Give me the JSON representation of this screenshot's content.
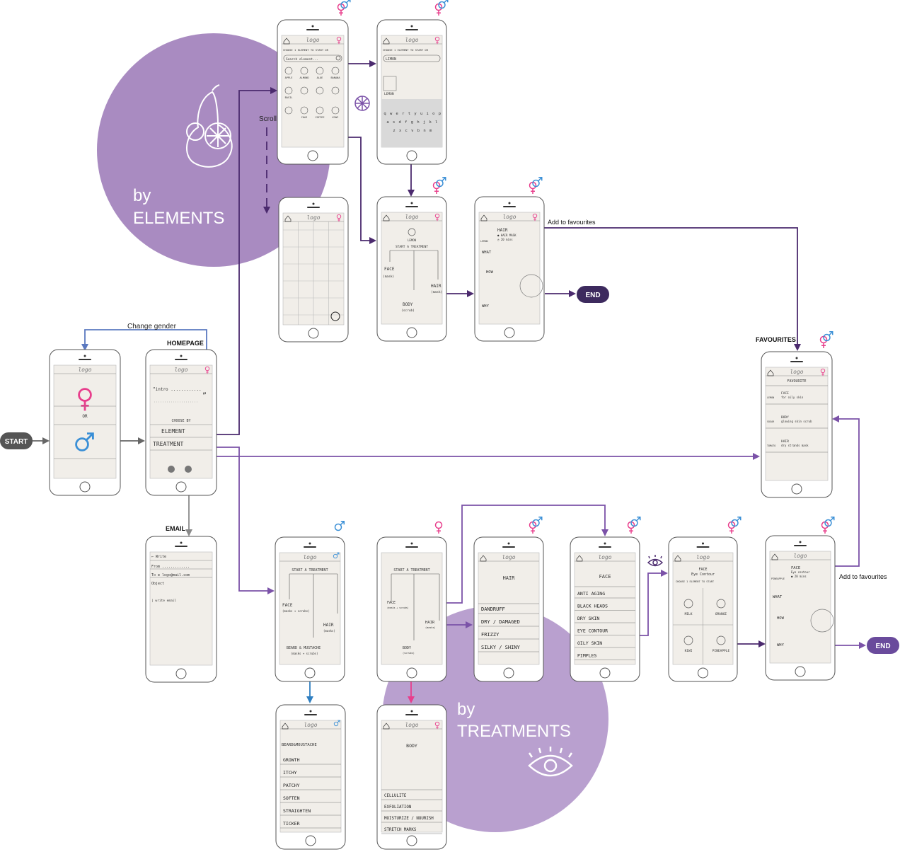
{
  "labels": {
    "by_elements_1": "by",
    "by_elements_2": "ELEMENTS",
    "by_treatments_1": "by",
    "by_treatments_2": "TREATMENTS",
    "scroll": "Scroll",
    "change_gender": "Change gender",
    "homepage": "HOMEPAGE",
    "email": "EMAIL",
    "favourites": "FAVOURITES",
    "add_fav_top": "Add to favourites",
    "add_fav_bottom": "Add to favourites",
    "start": "START",
    "end_top": "END",
    "end_bottom": "END"
  },
  "sketch": {
    "logo": "logo",
    "gender_or": "OR",
    "home_intro": "“intro ............",
    "home_quote_end": "”",
    "home_choose_by": "CHOOSE BY",
    "home_element": "ELEMENT",
    "home_treatment": "TREATMENT",
    "elem_choose": "CHOOSE 1 ELEMENT TO START OR",
    "elem_search": "Search element...",
    "elem_items": [
      "APPLE",
      "ALMOND",
      "ALOE",
      "BANANA",
      "BASIL",
      "",
      "",
      "",
      "",
      "CHAI",
      "COFFEE",
      "KIWI"
    ],
    "kb_query": "LIMON",
    "kb_result": "LEMON",
    "kb_row1": [
      "q",
      "w",
      "e",
      "r",
      "t",
      "y",
      "u",
      "i",
      "o",
      "p"
    ],
    "kb_row2": [
      "a",
      "s",
      "d",
      "f",
      "g",
      "h",
      "j",
      "k",
      "l"
    ],
    "kb_row3": [
      "z",
      "x",
      "c",
      "v",
      "b",
      "n",
      "m"
    ],
    "lemon_title": "LEMON",
    "lemon_start": "START A TREATMENT",
    "lemon_face": "FACE",
    "lemon_face_sub": "(mask)",
    "lemon_hair": "HAIR",
    "lemon_hair_sub": "(mask)",
    "lemon_body": "BODY",
    "lemon_body_sub": "(scrub)",
    "det_hair": "HAIR",
    "det_sub1": "● HAIR MASK",
    "det_sub2": "◷ 20 mins",
    "det_lemon": "LEMON",
    "det_what": "WHAT",
    "det_how": "HOW",
    "det_why": "WHY",
    "email_write": "← Write",
    "email_from": "From .............",
    "email_to": "To ⊕ logo@mail.com",
    "email_object": "Object",
    "email_body": "| write email",
    "male_start": "START A TREATMENT",
    "male_face": "FACE",
    "male_face_sub": "(masks + scrubs)",
    "male_hair": "HAIR",
    "male_hair_sub": "(masks)",
    "male_beard": "BEARD & MUSTACHE",
    "male_beard_sub": "(masks + scrubs)",
    "female_start": "START A TREATMENT",
    "female_face": "FACE",
    "female_face_sub": "(masks + scrubs)",
    "female_hair": "HAIR",
    "female_hair_sub": "(masks)",
    "female_body": "BODY",
    "female_body_sub": "(scrubs)",
    "hair_title": "HAIR",
    "hair_items": [
      "DANDRUFF",
      "DRY / DAMAGED",
      "FRIZZY",
      "SILKY / SHINY"
    ],
    "face_title": "FACE",
    "face_items": [
      "ANTI AGING",
      "BLACK HEADS",
      "DRY SKIN",
      "EYE CONTOUR",
      "OILY SKIN",
      "PIMPLES"
    ],
    "eye_title": "FACE",
    "eye_sub": "Eye Contour",
    "eye_choose": "CHOOSE 1 ELEMENT TO START",
    "eye_items": [
      "MILK",
      "ORANGE",
      "KIWI",
      "PINEAPPLE"
    ],
    "det2_face": "FACE",
    "det2_sub1": "Eye contour",
    "det2_sub2": "● 20 mins",
    "det2_pine": "PINEAPPLE",
    "det2_what": "WHAT",
    "det2_how": "HOW",
    "det2_why": "WHY",
    "fav_title": "FAVOURITE",
    "fav_items": [
      {
        "icon": "LEMON",
        "cat": "FACE",
        "desc": "for oily skin"
      },
      {
        "icon": "SUGAR",
        "cat": "BODY",
        "desc": "glowing skin scrub"
      },
      {
        "icon": "TOMATO",
        "cat": "HAIR",
        "desc": "dry strands mask"
      }
    ],
    "beard_title": "BEARD&MOUSTACHE",
    "beard_items": [
      "GROWTH",
      "ITCHY",
      "PATCHY",
      "SOFTEN",
      "STRAIGHTEN",
      "TICKER"
    ],
    "body_title": "BODY",
    "body_items": [
      "CELLULITE",
      "EXFOLIATION",
      "MOISTURIZE / NOURISH",
      "STRETCH MARKS"
    ]
  },
  "colors": {
    "purple_blob": "#a98bc1",
    "purple_dark": "#4b2a6e",
    "purple_mid": "#7b52a8",
    "blue": "#5b79c0",
    "blue_beard": "#2f7fc1",
    "pink": "#e83e8c",
    "gray": "#7a7a7a",
    "start_bg": "#555555",
    "end_bg": "#3d2a5e"
  }
}
